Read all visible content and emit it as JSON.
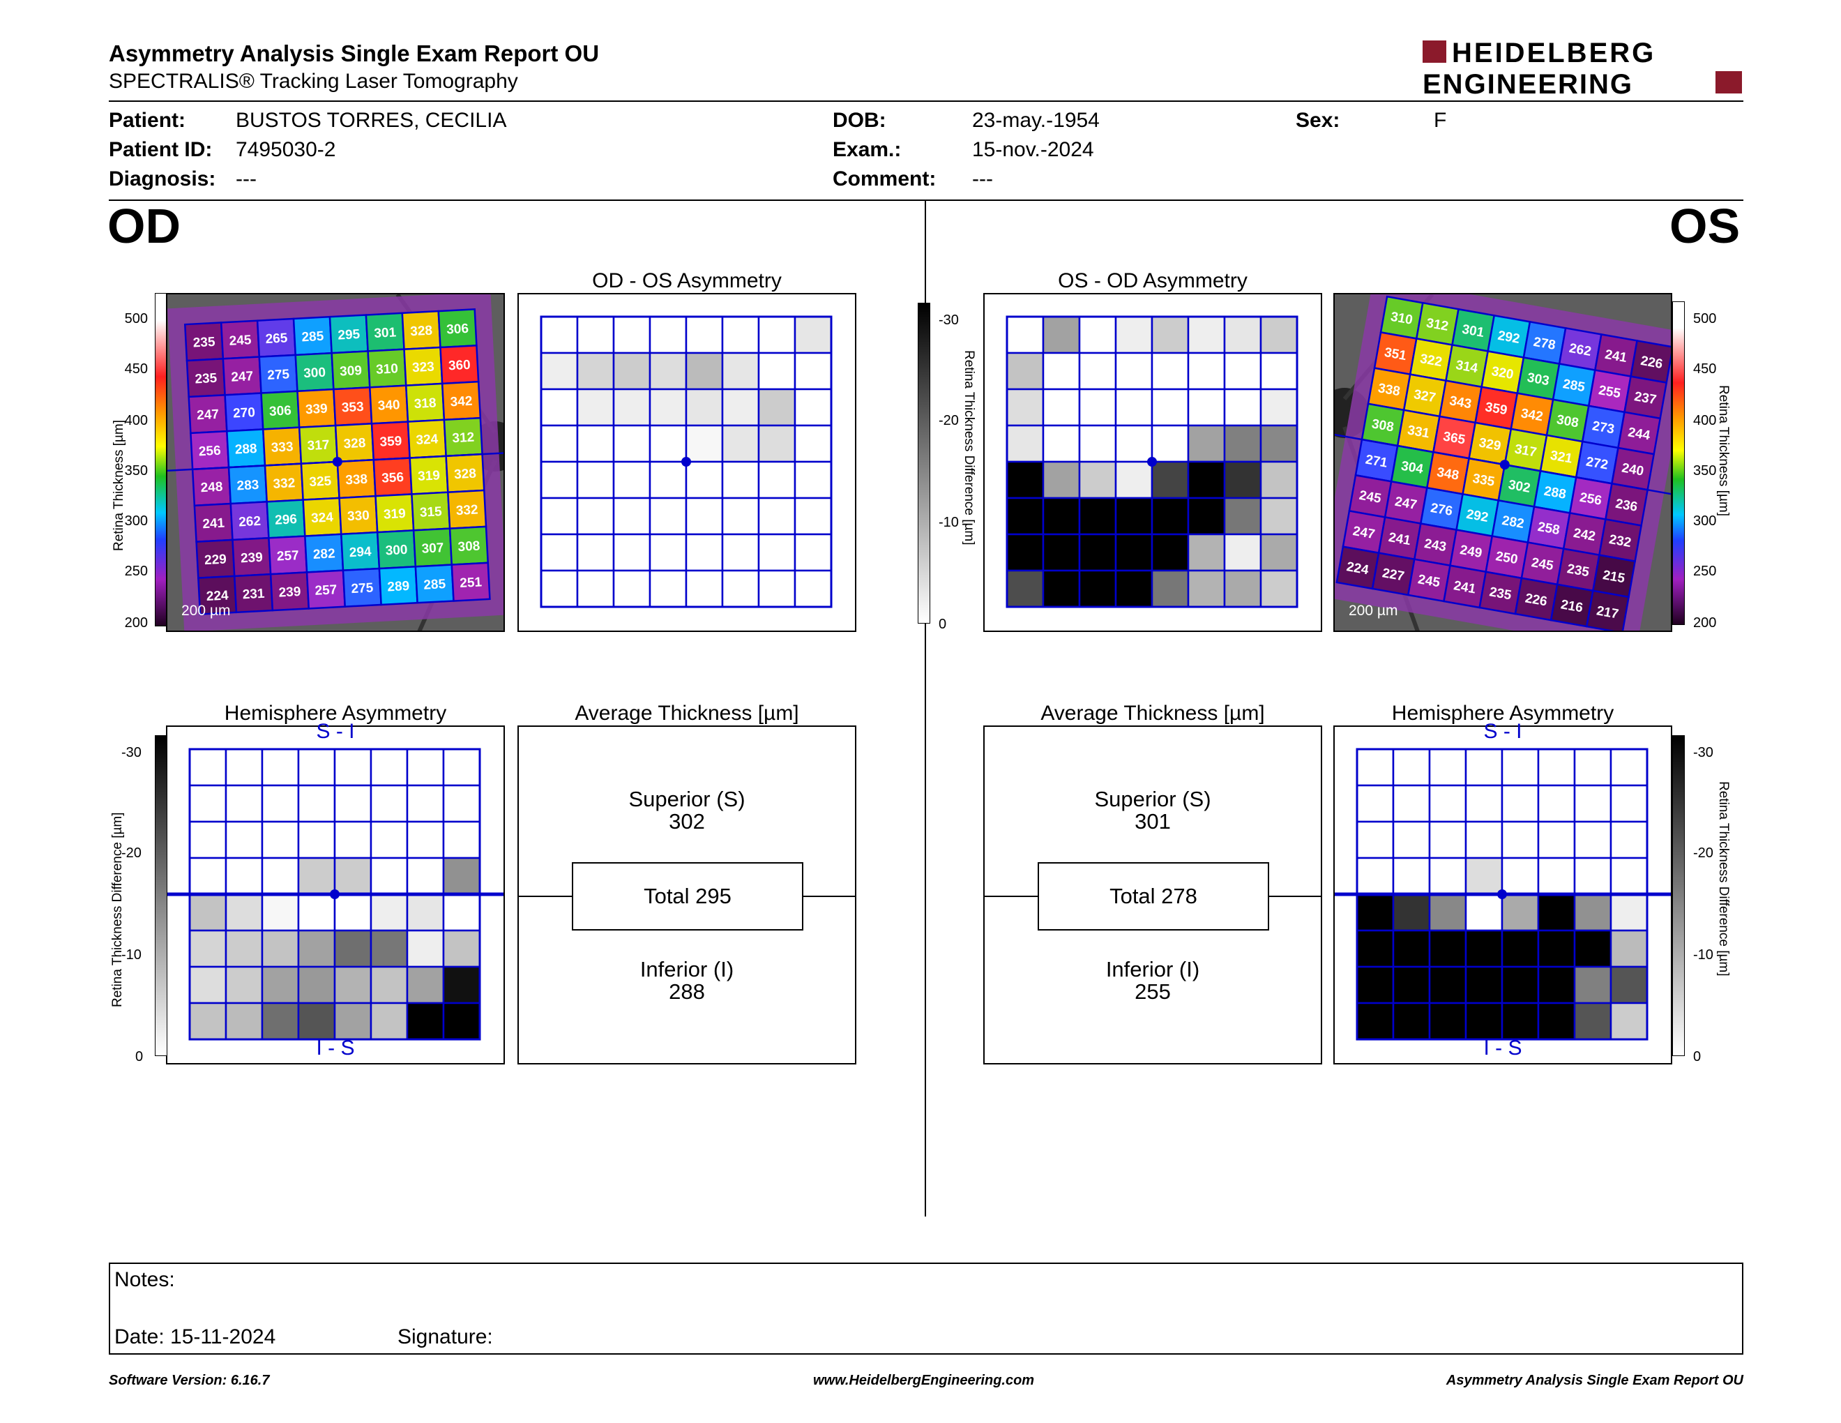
{
  "header": {
    "title": "Asymmetry Analysis Single Exam Report OU",
    "subtitle": "SPECTRALIS® Tracking Laser Tomography",
    "logo_line1": "HEIDELBERG",
    "logo_line2": "ENGINEERING",
    "brand_color": "#8b1a2b"
  },
  "patient": {
    "patient_label": "Patient:",
    "patient_value": "BUSTOS TORRES, CECILIA",
    "id_label": "Patient ID:",
    "id_value": "7495030-2",
    "diag_label": "Diagnosis:",
    "diag_value": "---",
    "dob_label": "DOB:",
    "dob_value": "23-may.-1954",
    "exam_label": "Exam.:",
    "exam_value": "15-nov.-2024",
    "comment_label": "Comment:",
    "comment_value": "---",
    "sex_label": "Sex:",
    "sex_value": "F"
  },
  "od": {
    "eye_label": "OD",
    "asym_title": "OD - OS Asymmetry",
    "hemi_title": "Hemisphere Asymmetry",
    "avg_title": "Average Thickness [µm]",
    "superior_label": "Superior (S)",
    "superior_value": "302",
    "total_text": "Total 295",
    "inferior_label": "Inferior (I)",
    "inferior_value": "288",
    "scale_bar": "200 µm",
    "thickness_grid": [
      [
        235,
        245,
        265,
        285,
        295,
        301,
        328,
        306
      ],
      [
        235,
        247,
        275,
        300,
        309,
        310,
        323,
        360
      ],
      [
        247,
        270,
        306,
        339,
        353,
        340,
        318,
        342
      ],
      [
        256,
        288,
        333,
        317,
        328,
        359,
        324,
        312
      ],
      [
        248,
        283,
        332,
        325,
        338,
        356,
        319,
        328
      ],
      [
        241,
        262,
        296,
        324,
        330,
        319,
        315,
        332
      ],
      [
        229,
        239,
        257,
        282,
        294,
        300,
        307,
        308
      ],
      [
        224,
        231,
        239,
        257,
        275,
        289,
        285,
        251
      ]
    ],
    "asym_grid": [
      [
        0,
        0,
        0,
        0,
        0,
        0,
        0,
        3
      ],
      [
        2,
        5,
        6,
        4,
        8,
        3,
        0,
        0
      ],
      [
        0,
        2,
        2,
        2,
        3,
        2,
        6,
        0
      ],
      [
        0,
        0,
        0,
        0,
        1,
        3,
        4,
        0
      ],
      [
        0,
        0,
        0,
        0,
        0,
        0,
        0,
        0
      ],
      [
        0,
        0,
        0,
        0,
        0,
        0,
        0,
        0
      ],
      [
        0,
        0,
        0,
        0,
        0,
        0,
        0,
        0
      ],
      [
        0,
        0,
        0,
        0,
        0,
        0,
        0,
        0
      ]
    ],
    "hemi_grid": [
      [
        0,
        0,
        0,
        0,
        0,
        0,
        0,
        0
      ],
      [
        0,
        0,
        0,
        0,
        0,
        0,
        0,
        0
      ],
      [
        0,
        0,
        0,
        0,
        0,
        0,
        0,
        0
      ],
      [
        0,
        0,
        0,
        6,
        6,
        0,
        0,
        13
      ],
      [
        7,
        4,
        1,
        0,
        0,
        2,
        3,
        0
      ],
      [
        5,
        6,
        7,
        11,
        17,
        16,
        2,
        7
      ],
      [
        4,
        6,
        11,
        12,
        9,
        7,
        11,
        28
      ],
      [
        7,
        8,
        17,
        20,
        11,
        7,
        30,
        30
      ]
    ]
  },
  "os": {
    "eye_label": "OS",
    "asym_title": "OS - OD Asymmetry",
    "hemi_title": "Hemisphere Asymmetry",
    "avg_title": "Average Thickness [µm]",
    "superior_label": "Superior (S)",
    "superior_value": "301",
    "total_text": "Total 278",
    "inferior_label": "Inferior (I)",
    "inferior_value": "255",
    "scale_bar": "200 µm",
    "thickness_grid": [
      [
        310,
        312,
        301,
        292,
        278,
        262,
        241,
        226
      ],
      [
        351,
        322,
        314,
        320,
        303,
        285,
        255,
        237
      ],
      [
        338,
        327,
        343,
        359,
        342,
        308,
        273,
        244
      ],
      [
        308,
        331,
        365,
        329,
        317,
        321,
        272,
        240
      ],
      [
        271,
        304,
        348,
        335,
        302,
        288,
        256,
        236
      ],
      [
        245,
        247,
        276,
        292,
        282,
        258,
        242,
        232
      ],
      [
        247,
        241,
        243,
        249,
        250,
        245,
        235,
        215
      ],
      [
        224,
        227,
        245,
        241,
        235,
        226,
        216,
        217
      ]
    ],
    "asym_grid": [
      [
        0,
        11,
        0,
        2,
        6,
        2,
        3,
        6
      ],
      [
        7,
        0,
        0,
        0,
        0,
        0,
        0,
        0
      ],
      [
        4,
        0,
        0,
        0,
        0,
        0,
        0,
        2
      ],
      [
        3,
        0,
        0,
        0,
        0,
        11,
        15,
        14
      ],
      [
        30,
        11,
        6,
        2,
        22,
        30,
        24,
        7
      ],
      [
        30,
        30,
        30,
        30,
        30,
        30,
        16,
        6
      ],
      [
        30,
        30,
        30,
        30,
        30,
        9,
        2,
        10
      ],
      [
        21,
        30,
        30,
        30,
        16,
        9,
        10,
        6
      ]
    ],
    "hemi_grid": [
      [
        0,
        0,
        0,
        0,
        0,
        0,
        0,
        0
      ],
      [
        0,
        0,
        0,
        0,
        0,
        0,
        0,
        0
      ],
      [
        0,
        0,
        0,
        0,
        0,
        0,
        0,
        0
      ],
      [
        0,
        0,
        0,
        4,
        0,
        0,
        0,
        0
      ],
      [
        30,
        24,
        14,
        0,
        10,
        30,
        13,
        2
      ],
      [
        30,
        30,
        30,
        30,
        30,
        30,
        30,
        8
      ],
      [
        30,
        30,
        30,
        30,
        30,
        30,
        15,
        20
      ],
      [
        30,
        30,
        30,
        30,
        30,
        30,
        20,
        6
      ]
    ]
  },
  "scales": {
    "thickness_axis_label": "Retina  Thickness [µm]",
    "thickness_ticks": [
      "500",
      "450",
      "400",
      "350",
      "300",
      "250",
      "200"
    ],
    "diff_axis_label": "Retina Thickness Difference [µm]",
    "diff_ticks": [
      "-30",
      "-20",
      "-10",
      "0"
    ],
    "hemi_top": "S - I",
    "hemi_bottom": "I - S"
  },
  "notes": {
    "notes_label": "Notes:",
    "date_text": "Date: 15-11-2024",
    "signature_label": "Signature:"
  },
  "footer": {
    "software": "Software Version: 6.16.7",
    "website": "www.HeidelbergEngineering.com",
    "report_name": "Asymmetry Analysis Single Exam Report OU"
  }
}
